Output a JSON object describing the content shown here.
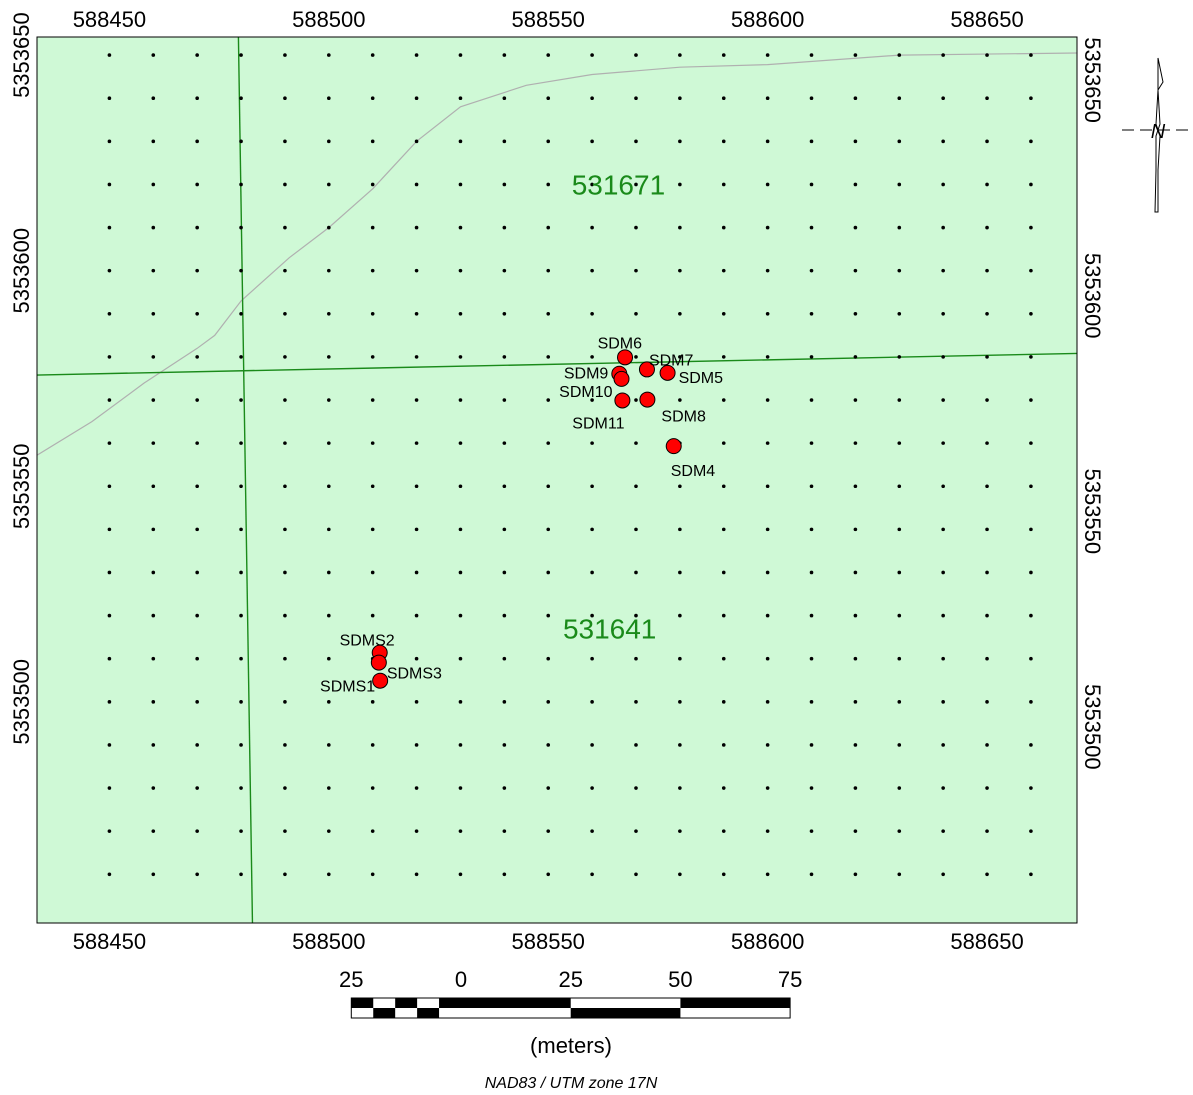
{
  "map": {
    "background_color": "#cff9d6",
    "frame_color": "#000000",
    "parcel_line_color": "#1a8a1a",
    "road_line_color": "#b0b0b0",
    "point_fill": "#ff0000",
    "zone_label_color": "#1a8a1a",
    "x_range": [
      588433.5,
      588670.5
    ],
    "y_range": [
      5353448.7,
      5353654.2
    ],
    "grid_x": [
      588450,
      588460,
      588470,
      588480,
      588490,
      588500,
      588510,
      588520,
      588530,
      588540,
      588550,
      588560,
      588570,
      588580,
      588590,
      588600,
      588610,
      588620,
      588630,
      588640,
      588650,
      588660
    ],
    "grid_y": [
      5353650,
      5353640,
      5353630,
      5353620,
      5353610,
      5353600,
      5353590,
      5353580,
      5353570,
      5353560,
      5353550,
      5353540,
      5353530,
      5353520,
      5353510,
      5353500,
      5353490,
      5353480,
      5353470,
      5353460
    ]
  },
  "axes": {
    "x_ticks": [
      {
        "value": 588450,
        "label": "588450"
      },
      {
        "value": 588500,
        "label": "588500"
      },
      {
        "value": 588550,
        "label": "588550"
      },
      {
        "value": 588600,
        "label": "588600"
      },
      {
        "value": 588650,
        "label": "588650"
      }
    ],
    "y_ticks": [
      {
        "value": 5353650,
        "label": "5353650"
      },
      {
        "value": 5353600,
        "label": "5353600"
      },
      {
        "value": 5353550,
        "label": "5353550"
      },
      {
        "value": 5353500,
        "label": "5353500"
      }
    ]
  },
  "parcels": [
    {
      "id": "531671",
      "label": "531671",
      "x": 588566,
      "y": 5353620
    },
    {
      "id": "531641",
      "label": "531641",
      "x": 588564,
      "y": 5353517
    }
  ],
  "parcel_lines": [
    [
      [
        588433.5,
        5353575.8
      ],
      [
        588670.5,
        5353580.8
      ]
    ],
    [
      [
        588479.4,
        5353654.2
      ],
      [
        588482.6,
        5353448.7
      ]
    ]
  ],
  "road_line": [
    [
      588433.5,
      5353557.2
    ],
    [
      588446,
      5353565
    ],
    [
      588458,
      5353574
    ],
    [
      588470,
      5353582
    ],
    [
      588474,
      5353585
    ],
    [
      588480,
      5353593
    ],
    [
      588491,
      5353603
    ],
    [
      588500,
      5353610
    ],
    [
      588510,
      5353619
    ],
    [
      588520,
      5353630
    ],
    [
      588530,
      5353638
    ],
    [
      588545,
      5353643
    ],
    [
      588560,
      5353645.5
    ],
    [
      588580,
      5353647.2
    ],
    [
      588600,
      5353647.8
    ],
    [
      588630,
      5353650
    ],
    [
      588670.5,
      5353650.5
    ]
  ],
  "sample_points": [
    {
      "id": "SDM6",
      "label": "SDM6",
      "x": 588567.5,
      "y": 5353579.9,
      "anchor": "end",
      "dx": 17,
      "dy": -14
    },
    {
      "id": "SDM7",
      "label": "SDM7",
      "x": 588572.5,
      "y": 5353577.1,
      "anchor": "start",
      "dx": 2,
      "dy": -9
    },
    {
      "id": "SDM9",
      "label": "SDM9",
      "x": 588566.2,
      "y": 5353576.1,
      "anchor": "end",
      "dx": -11,
      "dy": 0
    },
    {
      "id": "SDM5",
      "label": "SDM5",
      "x": 588577.2,
      "y": 5353576.3,
      "anchor": "start",
      "dx": 11,
      "dy": 5
    },
    {
      "id": "SDM10",
      "label": "SDM10",
      "x": 588566.7,
      "y": 5353574.9,
      "anchor": "end",
      "dx": -9,
      "dy": 13
    },
    {
      "id": "SDM11",
      "label": "SDM11",
      "x": 588566.9,
      "y": 5353569.9,
      "anchor": "middle",
      "dx": -24,
      "dy": 23
    },
    {
      "id": "SDM8",
      "label": "SDM8",
      "x": 588572.6,
      "y": 5353570.1,
      "anchor": "start",
      "dx": 14,
      "dy": 17
    },
    {
      "id": "SDM4",
      "label": "SDM4",
      "x": 588578.6,
      "y": 5353559.3,
      "anchor": "start",
      "dx": -3,
      "dy": 25
    },
    {
      "id": "SDMS2",
      "label": "SDMS2",
      "x": 588511.6,
      "y": 5353511.4,
      "anchor": "end",
      "dx": 15,
      "dy": -12
    },
    {
      "id": "SDMS3",
      "label": "SDMS3",
      "x": 588511.4,
      "y": 5353509.1,
      "anchor": "start",
      "dx": 8,
      "dy": 11
    },
    {
      "id": "SDMS1",
      "label": "SDMS1",
      "x": 588511.7,
      "y": 5353504.9,
      "anchor": "end",
      "dx": -5,
      "dy": 6
    }
  ],
  "scale_bar": {
    "labels": [
      {
        "text": "25",
        "value": -25
      },
      {
        "text": "0",
        "value": 0
      },
      {
        "text": "25",
        "value": 25
      },
      {
        "text": "50",
        "value": 50
      },
      {
        "text": "75",
        "value": 75
      }
    ],
    "units": "(meters)"
  },
  "projection": "NAD83 / UTM zone 17N",
  "north_arrow": {
    "label": "N"
  }
}
